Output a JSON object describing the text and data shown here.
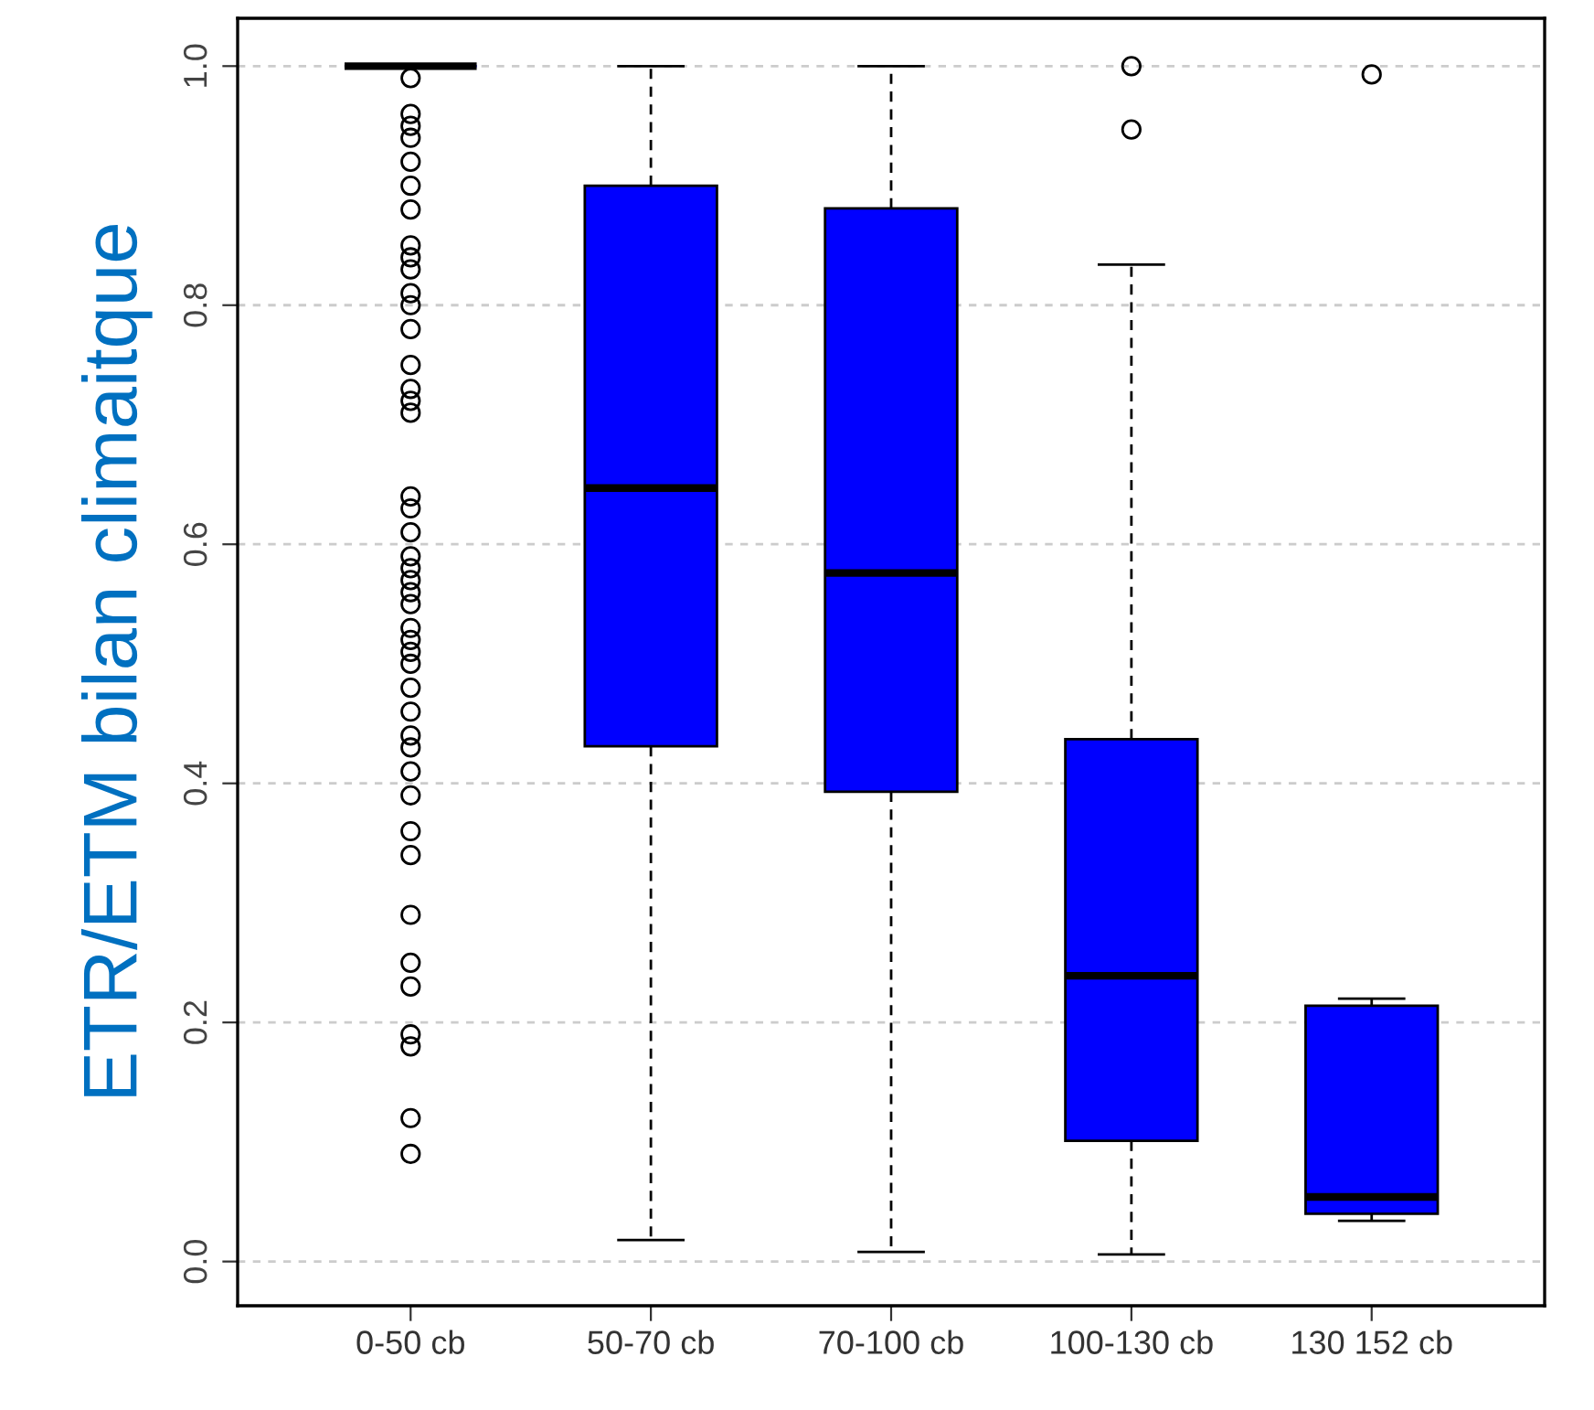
{
  "chart_data": {
    "type": "box",
    "ylabel": "ETR/ETM bilan climaitque",
    "categories": [
      "0-50 cb",
      "50-70 cb",
      "70-100 cb",
      "100-130 cb",
      "130 152 cb"
    ],
    "color": "#0000ff",
    "marker": "circle",
    "ylim": [
      -0.037,
      1.04
    ],
    "yticks": [
      {
        "value": 0,
        "label": "0.0"
      },
      0.2,
      0.4,
      0.6,
      0.8,
      {
        "value": 1,
        "label": "1.0"
      }
    ],
    "grid": "y",
    "boxes": [
      {
        "low": 1.0,
        "q1": 1.0,
        "median": 1.0,
        "q3": 1.0,
        "high": 1.0,
        "outliers": [
          0.99,
          0.96,
          0.95,
          0.94,
          0.92,
          0.9,
          0.88,
          0.85,
          0.84,
          0.83,
          0.81,
          0.8,
          0.78,
          0.75,
          0.73,
          0.72,
          0.71,
          0.64,
          0.63,
          0.61,
          0.59,
          0.58,
          0.57,
          0.56,
          0.55,
          0.53,
          0.52,
          0.51,
          0.5,
          0.48,
          0.46,
          0.44,
          0.43,
          0.41,
          0.39,
          0.36,
          0.34,
          0.29,
          0.25,
          0.23,
          0.19,
          0.18,
          0.12,
          0.09
        ]
      },
      {
        "low": 0.018,
        "q1": 0.431,
        "median": 0.647,
        "q3": 0.9,
        "high": 1.0
      },
      {
        "low": 0.008,
        "q1": 0.393,
        "median": 0.576,
        "q3": 0.881,
        "high": 1.0
      },
      {
        "low": 0.006,
        "q1": 0.101,
        "median": 0.239,
        "q3": 0.437,
        "high": 0.834,
        "outliers": [
          1.0,
          0.947
        ]
      },
      {
        "low": 0.034,
        "q1": 0.04,
        "median": 0.054,
        "q3": 0.214,
        "high": 0.22,
        "outliers": [
          0.993
        ]
      }
    ]
  }
}
